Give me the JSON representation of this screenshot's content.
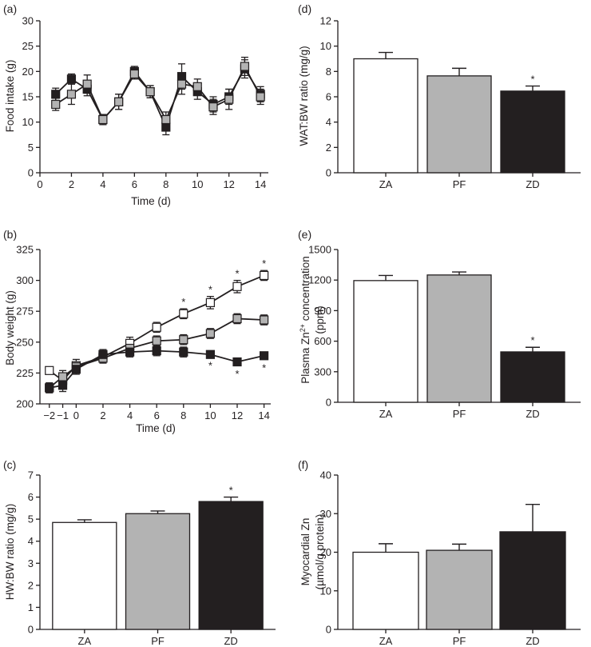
{
  "figure": {
    "colors": {
      "ZA": "#ffffff",
      "PF": "#b3b3b3",
      "ZD": "#231f20",
      "ink": "#231f20"
    }
  },
  "chart_data": [
    {
      "id": "a",
      "panel_label": "(a)",
      "type": "line",
      "title": "",
      "xlabel": "Time (d)",
      "ylabel": "Food intake (g)",
      "xlim": [
        0,
        14.5
      ],
      "ylim": [
        0,
        30
      ],
      "xticks": [
        0,
        2,
        4,
        6,
        8,
        10,
        12,
        14
      ],
      "yticks": [
        0,
        5,
        10,
        15,
        20,
        25,
        30
      ],
      "series": [
        {
          "name": "ZD",
          "color": "#231f20",
          "x": [
            1,
            2,
            3,
            4,
            5,
            6,
            7,
            8,
            9,
            10,
            11,
            12,
            13,
            14
          ],
          "y": [
            15.5,
            18.5,
            16.5,
            10.5,
            14,
            20,
            16,
            9,
            19,
            16,
            13.5,
            15,
            20.5,
            15.5
          ],
          "err": [
            1.2,
            1.0,
            1.3,
            1.0,
            1.5,
            1.0,
            1.2,
            1.5,
            2.5,
            1.5,
            1.5,
            1.5,
            1.8,
            1.5
          ]
        },
        {
          "name": "PF",
          "color": "#b3b3b3",
          "x": [
            1,
            2,
            3,
            4,
            5,
            6,
            7,
            8,
            9,
            10,
            11,
            12,
            13,
            14
          ],
          "y": [
            13.5,
            15.5,
            17.5,
            10.5,
            14,
            19.5,
            16,
            10.5,
            17.5,
            17,
            13,
            14.5,
            21,
            15
          ],
          "err": [
            1.2,
            2.0,
            1.8,
            1.0,
            1.5,
            1.0,
            1.2,
            1.5,
            2.0,
            1.5,
            1.5,
            2.0,
            1.8,
            1.5
          ]
        }
      ]
    },
    {
      "id": "b",
      "panel_label": "(b)",
      "type": "line",
      "title": "",
      "xlabel": "Time (d)",
      "ylabel": "Body weight (g)",
      "xlim": [
        -2.7,
        14.5
      ],
      "ylim": [
        200,
        325
      ],
      "xticks": [
        -2,
        -1,
        0,
        2,
        4,
        6,
        8,
        10,
        12,
        14
      ],
      "xtick_labels": [
        "−2",
        "−1",
        "0",
        "2",
        "4",
        "6",
        "8",
        "10",
        "12",
        "14"
      ],
      "yticks": [
        200,
        225,
        250,
        275,
        300,
        325
      ],
      "series": [
        {
          "name": "ZA",
          "color": "#ffffff",
          "x": [
            -2,
            -1,
            0,
            2,
            4,
            6,
            8,
            10,
            12,
            14
          ],
          "y": [
            227,
            219,
            231,
            238,
            249,
            262,
            273,
            282,
            295,
            304
          ],
          "err": [
            2,
            4,
            5,
            4,
            5,
            4,
            4,
            5,
            5,
            4
          ],
          "sig": [
            false,
            false,
            false,
            false,
            false,
            false,
            true,
            true,
            true,
            true
          ]
        },
        {
          "name": "PF",
          "color": "#b3b3b3",
          "x": [
            -2,
            -1,
            0,
            2,
            4,
            6,
            8,
            10,
            12,
            14
          ],
          "y": [
            213,
            222,
            230,
            237,
            245,
            251,
            252,
            257,
            269,
            268
          ],
          "err": [
            4,
            5,
            4,
            4,
            4,
            4,
            4,
            4,
            4,
            4
          ],
          "sig": [
            false,
            false,
            false,
            false,
            false,
            false,
            false,
            false,
            false,
            false
          ]
        },
        {
          "name": "ZD",
          "color": "#231f20",
          "x": [
            -2,
            -1,
            0,
            2,
            4,
            6,
            8,
            10,
            12,
            14
          ],
          "y": [
            213,
            215,
            228,
            240,
            242,
            243,
            242,
            240,
            234,
            239
          ],
          "err": [
            4,
            5,
            4,
            4,
            4,
            4,
            4,
            2,
            3,
            3
          ],
          "sig": [
            false,
            false,
            false,
            false,
            false,
            false,
            false,
            true,
            true,
            true
          ]
        }
      ]
    },
    {
      "id": "c",
      "panel_label": "(c)",
      "type": "bar",
      "title": "",
      "xlabel": "",
      "ylabel": "HW:BW ratio (mg/g)",
      "ylim": [
        0,
        7
      ],
      "yticks": [
        0,
        1,
        2,
        3,
        4,
        5,
        6,
        7
      ],
      "categories": [
        "ZA",
        "PF",
        "ZD"
      ],
      "values": [
        4.85,
        5.25,
        5.8
      ],
      "err": [
        0.12,
        0.12,
        0.2
      ],
      "sig": [
        false,
        false,
        true
      ]
    },
    {
      "id": "d",
      "panel_label": "(d)",
      "type": "bar",
      "title": "",
      "xlabel": "",
      "ylabel": "WAT:BW ratio (mg/g)",
      "ylim": [
        0,
        12
      ],
      "yticks": [
        0,
        2,
        4,
        6,
        8,
        10,
        12
      ],
      "categories": [
        "ZA",
        "PF",
        "ZD"
      ],
      "values": [
        9.0,
        7.65,
        6.45
      ],
      "err": [
        0.5,
        0.6,
        0.4
      ],
      "sig": [
        false,
        false,
        true
      ]
    },
    {
      "id": "e",
      "panel_label": "(e)",
      "type": "bar",
      "title": "",
      "xlabel": "",
      "ylabel_main": "Plasma Zn",
      "ylabel_sup": "2+",
      "ylabel_rest": " concentration",
      "ylabel2": "(ppm)",
      "ylim": [
        0,
        1500
      ],
      "yticks": [
        0,
        300,
        600,
        900,
        1200,
        1500
      ],
      "categories": [
        "ZA",
        "PF",
        "ZD"
      ],
      "values": [
        1195,
        1250,
        495
      ],
      "err": [
        50,
        30,
        45
      ],
      "sig": [
        false,
        false,
        true
      ]
    },
    {
      "id": "f",
      "panel_label": "(f)",
      "type": "bar",
      "title": "",
      "xlabel": "",
      "ylabel": "Myocardial Zn",
      "ylabel2": "(µmol/g protein)",
      "ylim": [
        0,
        40
      ],
      "yticks": [
        0,
        10,
        20,
        30,
        40
      ],
      "categories": [
        "ZA",
        "PF",
        "ZD"
      ],
      "values": [
        20,
        20.5,
        25.3
      ],
      "err": [
        2.2,
        1.6,
        7.1
      ],
      "sig": [
        false,
        false,
        false
      ]
    }
  ]
}
